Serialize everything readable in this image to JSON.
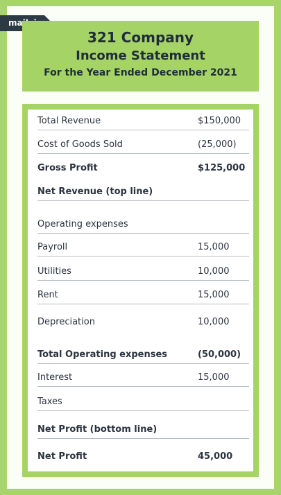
{
  "logo": "mailvio",
  "header": {
    "company": "321 Company",
    "title": "Income Statement",
    "period": "For the Year Ended December 2021"
  },
  "table": {
    "rows": [
      {
        "label": "Total Revenue",
        "value": "$150,000"
      },
      {
        "label": "Cost of Goods Sold",
        "value": "(25,000)"
      },
      {
        "label": "Gross Profit",
        "value": "$125,000",
        "bold": true
      },
      {
        "label": "Net Revenue (top line)",
        "bold": true
      },
      {
        "label": "Operating expenses"
      },
      {
        "label": "Payroll",
        "value": "15,000"
      },
      {
        "label": "Utilities",
        "value": "10,000"
      },
      {
        "label": "Rent",
        "value": "15,000"
      },
      {
        "label": "Depreciation",
        "value": "10,000"
      },
      {
        "label": "Total Operating expenses",
        "value": "(50,000)",
        "bold": true
      },
      {
        "label": "Interest",
        "value": "15,000"
      },
      {
        "label": "Taxes"
      },
      {
        "label": "Net Profit (bottom line)",
        "bold": true
      },
      {
        "label": "Net Profit",
        "value": "45,000",
        "bold": true
      }
    ]
  }
}
